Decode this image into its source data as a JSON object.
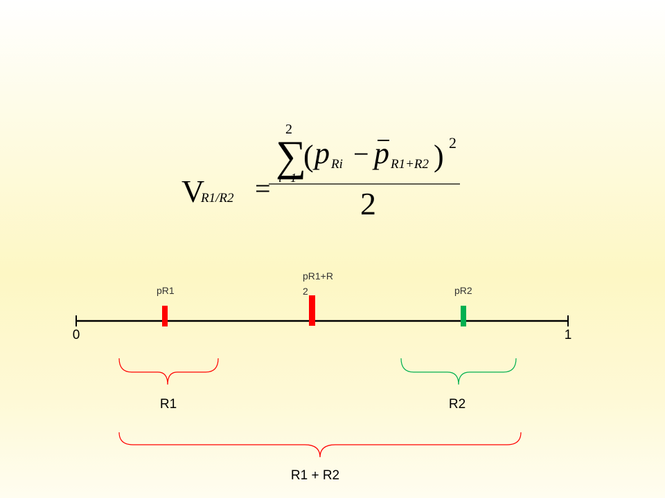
{
  "formula": {
    "lhs": "V",
    "lhs_subscript": "R1/R2",
    "equals": "=",
    "sum_symbol": "∑",
    "sum_upper": "2",
    "sum_lower": "i=1",
    "open_paren": "(",
    "term_p": "p",
    "term_subscript": "Ri",
    "minus": "−",
    "mean_p": "p",
    "mean_subscript": "R1+R2",
    "close_paren": ")",
    "exponent": "2",
    "denominator": "2"
  },
  "number_line": {
    "start_label": "0",
    "end_label": "1",
    "markers": [
      {
        "label": "pR1"
      },
      {
        "label": "pR1+R2"
      },
      {
        "label": "pR2"
      }
    ]
  },
  "braces": [
    {
      "label": "R1"
    },
    {
      "label": "R2"
    },
    {
      "label": "R1 + R2"
    }
  ]
}
